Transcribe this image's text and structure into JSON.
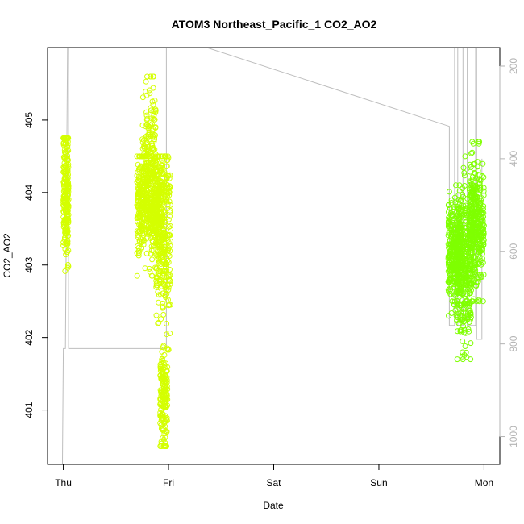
{
  "chart_data": {
    "type": "scatter",
    "title": "ATOM3 Northeast_Pacific_1 CO2_AO2",
    "xlabel": "Date",
    "ylabel": "CO2_AO2",
    "x_ticks": [
      "Thu",
      "Fri",
      "Sat",
      "Sun",
      "Mon"
    ],
    "y_ticks": [
      "401",
      "402",
      "403",
      "404",
      "405"
    ],
    "y2_ticks": [
      "200",
      "400",
      "600",
      "800",
      "1000"
    ],
    "xlim_days": [
      -0.15,
      4.15
    ],
    "ylim": [
      400.25,
      406.0
    ],
    "y2lim": [
      1060,
      160
    ],
    "grid": false,
    "colors": {
      "points_early": "#d4ff00",
      "points_late": "#7fff00",
      "secondary_line": "#bebebe",
      "frame": "#000000",
      "right_axis": "#b4b4b4"
    },
    "series": [
      {
        "color": "#d4ff00",
        "clusters": [
          {
            "x_day": [
              0.0,
              0.05
            ],
            "y": [
              402.6,
              404.75
            ],
            "center": 404.0,
            "spread": 0.45,
            "n": 220
          },
          {
            "x_day": [
              0.7,
              0.94
            ],
            "y": [
              402.85,
              404.5
            ],
            "center": 403.8,
            "spread": 0.35,
            "n": 520
          },
          {
            "x_day": [
              0.75,
              0.88
            ],
            "y": [
              403.5,
              405.6
            ],
            "center": 404.5,
            "spread": 0.55,
            "n": 180
          },
          {
            "x_day": [
              0.88,
              1.02
            ],
            "y": [
              401.8,
              404.5
            ],
            "center": 403.4,
            "spread": 0.6,
            "n": 320
          },
          {
            "x_day": [
              0.92,
              0.99
            ],
            "y": [
              400.5,
              401.9
            ],
            "center": 401.1,
            "spread": 0.35,
            "n": 170
          }
        ]
      },
      {
        "color": "#7fff00",
        "clusters": [
          {
            "x_day": [
              3.66,
              3.78
            ],
            "y": [
              402.3,
              404.1
            ],
            "center": 403.2,
            "spread": 0.35,
            "n": 320
          },
          {
            "x_day": [
              3.74,
              3.88
            ],
            "y": [
              401.7,
              404.5
            ],
            "center": 402.9,
            "spread": 0.55,
            "n": 380
          },
          {
            "x_day": [
              3.86,
              4.0
            ],
            "y": [
              402.5,
              404.7
            ],
            "center": 403.6,
            "spread": 0.45,
            "n": 380
          }
        ]
      }
    ],
    "secondary_line": [
      [
        -0.01,
        1100
      ],
      [
        0.0,
        810
      ],
      [
        0.02,
        810
      ],
      [
        0.04,
        160
      ],
      [
        0.05,
        160
      ],
      [
        0.05,
        810
      ],
      [
        0.98,
        810
      ],
      [
        0.98,
        150
      ],
      [
        1.23,
        150
      ],
      [
        3.67,
        330
      ],
      [
        3.67,
        760
      ],
      [
        3.72,
        760
      ],
      [
        3.72,
        150
      ],
      [
        3.75,
        150
      ],
      [
        3.75,
        760
      ],
      [
        3.8,
        760
      ],
      [
        3.8,
        150
      ],
      [
        3.84,
        150
      ],
      [
        3.84,
        760
      ],
      [
        3.92,
        760
      ],
      [
        3.92,
        150
      ],
      [
        3.93,
        150
      ],
      [
        3.93,
        790
      ],
      [
        3.98,
        790
      ],
      [
        3.98,
        400
      ]
    ]
  }
}
